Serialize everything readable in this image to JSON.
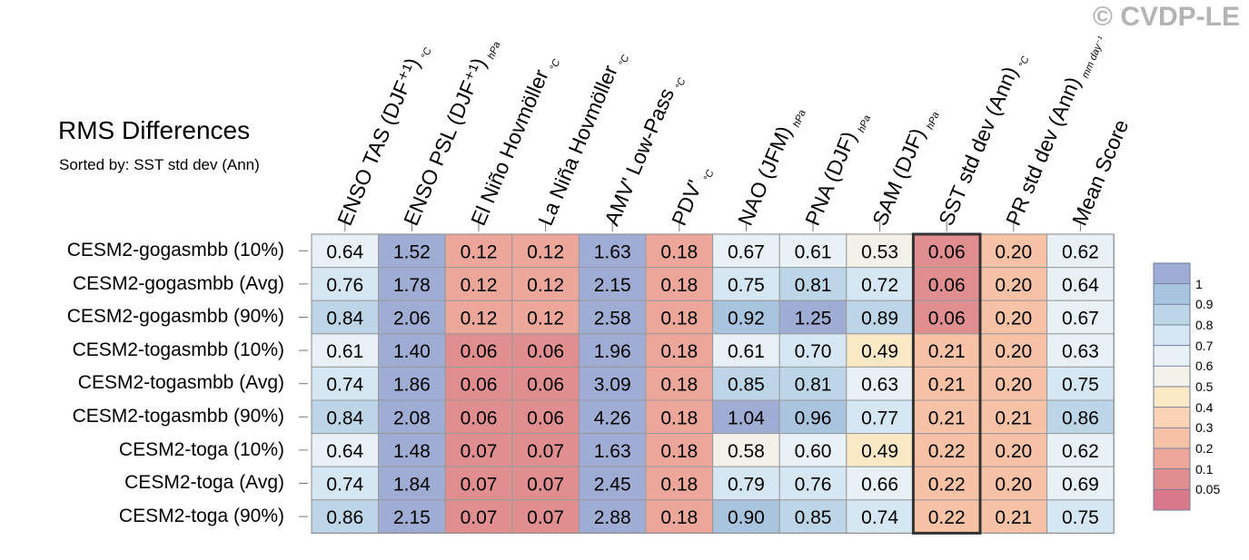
{
  "copyright": "© CVDP-LE",
  "title": "RMS Differences",
  "subtitle": "Sorted by: SST std dev (Ann)",
  "chart_data": {
    "type": "heatmap",
    "columns": [
      {
        "label": "ENSO TAS (DJF⁺¹)",
        "unit": "°C"
      },
      {
        "label": "ENSO PSL (DJF⁺¹)",
        "unit": "hPa"
      },
      {
        "label": "El Niño Hovmöller",
        "unit": "°C"
      },
      {
        "label": "La Niña Hovmöller",
        "unit": "°C"
      },
      {
        "label": "AMV' Low-Pass",
        "unit": "°C"
      },
      {
        "label": "PDV'",
        "unit": "°C"
      },
      {
        "label": "NAO (JFM)",
        "unit": "hPa"
      },
      {
        "label": "PNA (DJF)",
        "unit": "hPa"
      },
      {
        "label": "SAM (DJF)",
        "unit": "hPa"
      },
      {
        "label": "SST std dev (Ann)",
        "unit": "°C"
      },
      {
        "label": "PR std dev (Ann)",
        "unit": "mm day⁻¹"
      },
      {
        "label": "Mean Score",
        "unit": ""
      }
    ],
    "rows": [
      {
        "label": "CESM2-gogasmbb (10%)",
        "values": [
          "0.64",
          "1.52",
          "0.12",
          "0.12",
          "1.63",
          "0.18",
          "0.67",
          "0.61",
          "0.53",
          "0.06",
          "0.20",
          "0.62"
        ]
      },
      {
        "label": "CESM2-gogasmbb (Avg)",
        "values": [
          "0.76",
          "1.78",
          "0.12",
          "0.12",
          "2.15",
          "0.18",
          "0.75",
          "0.81",
          "0.72",
          "0.06",
          "0.20",
          "0.64"
        ]
      },
      {
        "label": "CESM2-gogasmbb (90%)",
        "values": [
          "0.84",
          "2.06",
          "0.12",
          "0.12",
          "2.58",
          "0.18",
          "0.92",
          "1.25",
          "0.89",
          "0.06",
          "0.20",
          "0.67"
        ]
      },
      {
        "label": "CESM2-togasmbb (10%)",
        "values": [
          "0.61",
          "1.40",
          "0.06",
          "0.06",
          "1.96",
          "0.18",
          "0.61",
          "0.70",
          "0.49",
          "0.21",
          "0.20",
          "0.63"
        ]
      },
      {
        "label": "CESM2-togasmbb (Avg)",
        "values": [
          "0.74",
          "1.86",
          "0.06",
          "0.06",
          "3.09",
          "0.18",
          "0.85",
          "0.81",
          "0.63",
          "0.21",
          "0.20",
          "0.75"
        ]
      },
      {
        "label": "CESM2-togasmbb (90%)",
        "values": [
          "0.84",
          "2.08",
          "0.06",
          "0.06",
          "4.26",
          "0.18",
          "1.04",
          "0.96",
          "0.77",
          "0.21",
          "0.21",
          "0.86"
        ]
      },
      {
        "label": "CESM2-toga (10%)",
        "values": [
          "0.64",
          "1.48",
          "0.07",
          "0.07",
          "1.63",
          "0.18",
          "0.58",
          "0.60",
          "0.49",
          "0.22",
          "0.20",
          "0.62"
        ]
      },
      {
        "label": "CESM2-toga (Avg)",
        "values": [
          "0.74",
          "1.84",
          "0.07",
          "0.07",
          "2.45",
          "0.18",
          "0.79",
          "0.76",
          "0.66",
          "0.22",
          "0.20",
          "0.69"
        ]
      },
      {
        "label": "CESM2-toga (90%)",
        "values": [
          "0.86",
          "2.15",
          "0.07",
          "0.07",
          "2.88",
          "0.18",
          "0.90",
          "0.85",
          "0.74",
          "0.22",
          "0.21",
          "0.75"
        ]
      }
    ],
    "highlight_column": 9,
    "colorbar": {
      "labels": [
        "1",
        "0.9",
        "0.8",
        "0.7",
        "0.6",
        "0.5",
        "0.4",
        "0.3",
        "0.2",
        "0.1",
        "0.05"
      ],
      "colors": [
        "#9facd3",
        "#a8c4de",
        "#bcd6e8",
        "#d4e7f2",
        "#e7f1f6",
        "#f3f1e8",
        "#fbe9c6",
        "#fbd5b3",
        "#f7c2a5",
        "#eca79a",
        "#e08e8f",
        "#d97a8a"
      ]
    }
  }
}
